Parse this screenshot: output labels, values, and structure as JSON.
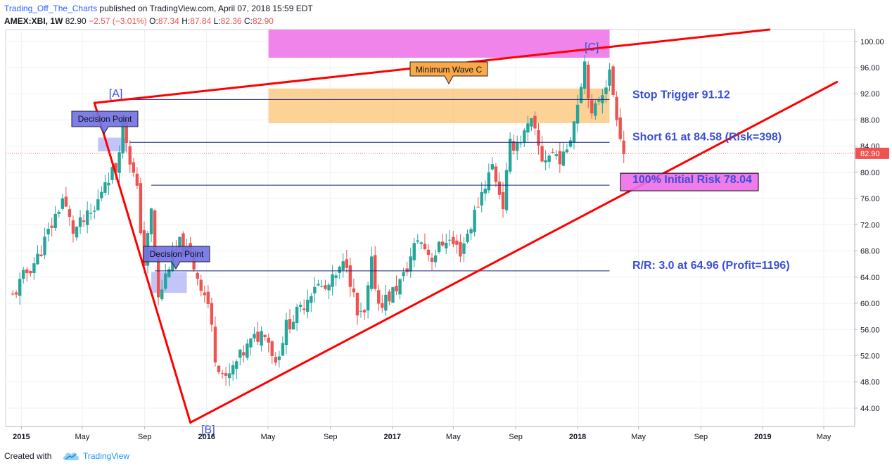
{
  "header": {
    "username": "Trading_Off_The_Charts",
    "published_text": "published on TradingView.com, April 07, 2018 15:59 EDT",
    "symbol": "AMEX:XBI, 1W",
    "last": "82.90",
    "change": "−2.57 (−3.01%)",
    "open_label": "O:",
    "open": "87.34",
    "high_label": "H:",
    "high": "87.84",
    "low_label": "L:",
    "low": "82.36",
    "close_label": "C:",
    "close": "82.90"
  },
  "footer": {
    "created_with": "Created with",
    "brand": "TradingView",
    "logo_icon": "tradingview-cloud-icon"
  },
  "colors": {
    "bull": "#26a69a",
    "bear": "#ef5350",
    "trendline": "#ff0000",
    "level_line": "#1a237e",
    "annotation_text": "#3b4fd6",
    "stop_zone": "#fbbf6b",
    "target_zone": "#ee6ee8",
    "decision_box": "#7b7ff0"
  },
  "chart_data": {
    "type": "candlestick",
    "symbol": "AMEX:XBI",
    "interval": "1W",
    "ylim": [
      41.2,
      101.8
    ],
    "y_ticks": [
      44,
      48,
      52,
      56,
      60,
      64,
      68,
      72,
      76,
      80,
      84,
      88,
      92,
      96,
      100
    ],
    "y_tick_labels": [
      "44.00",
      "48.00",
      "52.00",
      "56.00",
      "60.00",
      "64.00",
      "68.00",
      "72.00",
      "76.00",
      "80.00",
      "84.00",
      "88.00",
      "92.00",
      "96.00",
      "100.00"
    ],
    "x_ticks": [
      {
        "label": "2015",
        "date": "2015-01-01",
        "bold": true
      },
      {
        "label": "May",
        "date": "2015-05-01",
        "bold": false
      },
      {
        "label": "Sep",
        "date": "2015-09-01",
        "bold": false
      },
      {
        "label": "2016",
        "date": "2016-01-01",
        "bold": true
      },
      {
        "label": "May",
        "date": "2016-05-01",
        "bold": false
      },
      {
        "label": "Sep",
        "date": "2016-09-01",
        "bold": false
      },
      {
        "label": "2017",
        "date": "2017-01-01",
        "bold": true
      },
      {
        "label": "May",
        "date": "2017-05-01",
        "bold": false
      },
      {
        "label": "Sep",
        "date": "2017-09-01",
        "bold": false
      },
      {
        "label": "2018",
        "date": "2018-01-01",
        "bold": true
      },
      {
        "label": "May",
        "date": "2018-05-01",
        "bold": false
      },
      {
        "label": "Sep",
        "date": "2018-09-01",
        "bold": false
      },
      {
        "label": "2019",
        "date": "2019-01-01",
        "bold": true
      },
      {
        "label": "May",
        "date": "2019-05-01",
        "bold": false
      }
    ],
    "last_price": 82.9,
    "last_price_label": "82.90",
    "close_path": [
      [
        "2014-12-15",
        61.0
      ],
      [
        "2015-01-05",
        64.0
      ],
      [
        "2015-02-02",
        67.0
      ],
      [
        "2015-03-02",
        72.0
      ],
      [
        "2015-03-23",
        76.0
      ],
      [
        "2015-04-13",
        71.0
      ],
      [
        "2015-05-04",
        72.5
      ],
      [
        "2015-05-25",
        74.0
      ],
      [
        "2015-06-15",
        79.0
      ],
      [
        "2015-07-06",
        80.5
      ],
      [
        "2015-07-20",
        88.0
      ],
      [
        "2015-08-03",
        82.0
      ],
      [
        "2015-08-17",
        77.0
      ],
      [
        "2015-08-31",
        66.0
      ],
      [
        "2015-09-14",
        74.0
      ],
      [
        "2015-09-28",
        60.5
      ],
      [
        "2015-10-19",
        66.0
      ],
      [
        "2015-11-09",
        69.0
      ],
      [
        "2015-11-30",
        67.0
      ],
      [
        "2016-01-04",
        60.0
      ],
      [
        "2016-01-18",
        52.0
      ],
      [
        "2016-02-08",
        48.0
      ],
      [
        "2016-02-29",
        51.0
      ],
      [
        "2016-03-28",
        54.0
      ],
      [
        "2016-04-25",
        56.0
      ],
      [
        "2016-05-16",
        51.0
      ],
      [
        "2016-06-06",
        56.5
      ],
      [
        "2016-07-04",
        59.0
      ],
      [
        "2016-08-01",
        63.0
      ],
      [
        "2016-08-22",
        62.0
      ],
      [
        "2016-09-12",
        64.0
      ],
      [
        "2016-10-03",
        66.5
      ],
      [
        "2016-10-24",
        58.0
      ],
      [
        "2016-11-07",
        58.0
      ],
      [
        "2016-11-21",
        66.0
      ],
      [
        "2016-12-05",
        60.0
      ],
      [
        "2016-12-26",
        61.0
      ],
      [
        "2017-01-23",
        64.0
      ],
      [
        "2017-02-20",
        70.0
      ],
      [
        "2017-03-20",
        67.0
      ],
      [
        "2017-04-17",
        70.0
      ],
      [
        "2017-05-15",
        68.0
      ],
      [
        "2017-06-05",
        72.0
      ],
      [
        "2017-06-26",
        77.0
      ],
      [
        "2017-07-17",
        81.0
      ],
      [
        "2017-08-07",
        75.0
      ],
      [
        "2017-08-21",
        84.0
      ],
      [
        "2017-09-11",
        85.0
      ],
      [
        "2017-10-02",
        87.5
      ],
      [
        "2017-10-23",
        82.0
      ],
      [
        "2017-11-13",
        83.0
      ],
      [
        "2017-12-04",
        82.0
      ],
      [
        "2017-12-25",
        88.0
      ],
      [
        "2018-01-15",
        97.0
      ],
      [
        "2018-01-29",
        88.0
      ],
      [
        "2018-02-12",
        91.5
      ],
      [
        "2018-03-05",
        95.0
      ],
      [
        "2018-03-19",
        89.0
      ],
      [
        "2018-04-02",
        82.9
      ]
    ],
    "trendlines": [
      {
        "from": [
          "2015-05-25",
          90.6
        ],
        "to": [
          "2019-01-14",
          101.8
        ]
      },
      {
        "from": [
          "2015-05-25",
          90.6
        ],
        "to": [
          "2015-11-30",
          41.8
        ]
      },
      {
        "from": [
          "2015-11-30",
          41.8
        ],
        "to": [
          "2019-05-27",
          93.8
        ]
      }
    ],
    "levels": [
      {
        "value": 91.12,
        "from": "2015-07-13",
        "to": "2018-03-05",
        "label": "Stop Trigger 91.12"
      },
      {
        "value": 84.58,
        "from": "2015-08-03",
        "to": "2018-03-05",
        "label": "Short 61 at 84.58 (Risk=398)"
      },
      {
        "value": 78.04,
        "from": "2015-09-14",
        "to": "2018-03-05",
        "label": "100% Initial Risk 78.04"
      },
      {
        "value": 64.96,
        "from": "2015-09-21",
        "to": "2018-03-05",
        "label": "R/R: 3.0 at 64.96 (Profit=1196)"
      }
    ],
    "zones": [
      {
        "name": "minimum-wave-c-zone",
        "from": "2016-05-02",
        "to": "2018-03-05",
        "y_from": 87.5,
        "y_to": 92.8,
        "label": "Minimum Wave C"
      },
      {
        "name": "wave-c-target-zone",
        "from": "2016-05-02",
        "to": "2018-03-05",
        "y_from": 97.5,
        "y_to": 101.8,
        "label": ""
      },
      {
        "name": "decision-zone-1",
        "from": "2015-06-01",
        "to": "2015-07-27",
        "y_from": 83.2,
        "y_to": 85.3,
        "label": "Decision Point"
      },
      {
        "name": "decision-zone-2",
        "from": "2015-09-14",
        "to": "2015-11-23",
        "y_from": 61.6,
        "y_to": 64.8,
        "label": "Decision Point"
      }
    ],
    "wave_labels": [
      {
        "text": "[A]",
        "date": "2015-07-06",
        "price": 91.5
      },
      {
        "text": "[B]",
        "date": "2016-01-04",
        "price": 40.2
      },
      {
        "text": "[C]",
        "date": "2018-01-29",
        "price": 98.6
      }
    ]
  }
}
